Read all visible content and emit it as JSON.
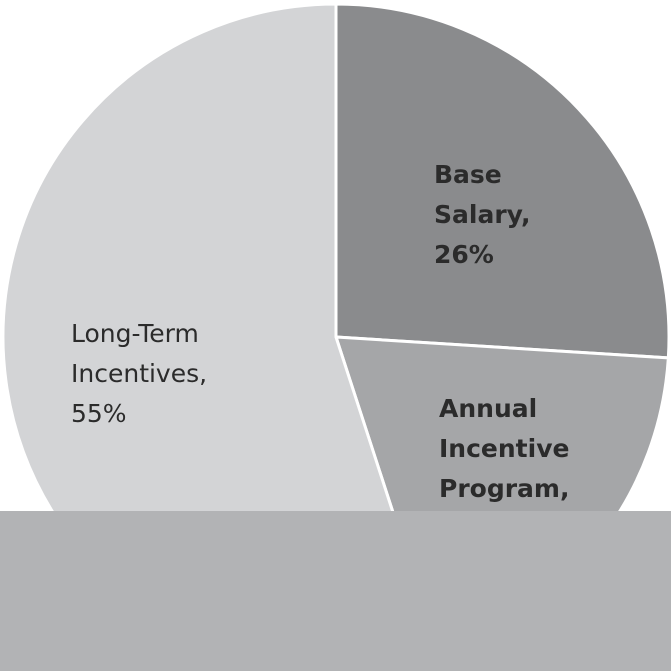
{
  "chart_data": {
    "type": "pie",
    "slices": [
      {
        "label_lines": [
          "Base",
          "Salary,",
          "26%"
        ],
        "value": 26,
        "color": "#8a8b8d",
        "bold": true,
        "start_angle_deg": 0
      },
      {
        "label_lines": [
          "Annual",
          "Incentive",
          "Program,"
        ],
        "value": 19,
        "color": "#a5a6a8",
        "bold": true
      },
      {
        "label_lines": [
          "Long-Term",
          "Incentives,",
          "55%"
        ],
        "value": 55,
        "color": "#d3d4d6",
        "bold": false
      }
    ]
  },
  "overlay": {
    "color": "#b2b3b5"
  }
}
